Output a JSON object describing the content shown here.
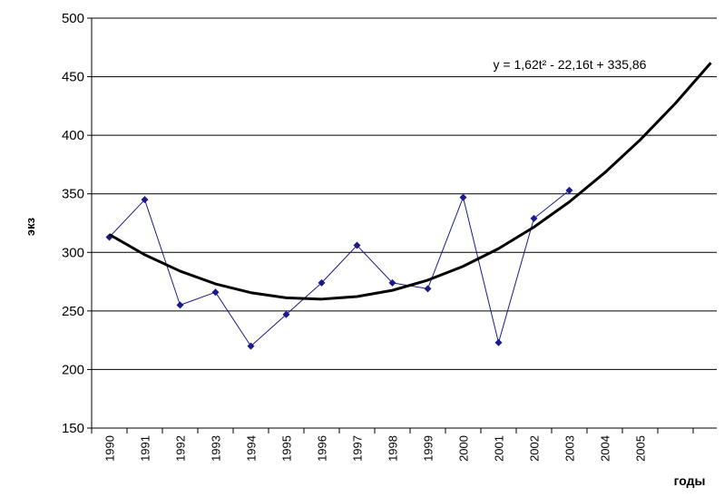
{
  "chart_data": {
    "type": "line",
    "annotation": "y = 1,62t² - 22,16t + 335,86",
    "xlabel": "годы",
    "ylabel": "экз",
    "categories": [
      "1990",
      "1991",
      "1992",
      "1993",
      "1994",
      "1995",
      "1996",
      "1997",
      "1998",
      "1999",
      "2000",
      "2001",
      "2002",
      "2003",
      "2004",
      "2005",
      null,
      null
    ],
    "series": [
      {
        "color": "#1a1a8c",
        "marker": "diamond",
        "width": 1,
        "values": [
          313,
          345,
          255,
          266,
          220,
          247,
          274,
          306,
          274,
          269,
          347,
          223,
          329,
          353,
          null,
          null,
          null,
          null
        ]
      },
      {
        "color": "#000000",
        "marker": "none",
        "width": 3,
        "values": [
          315.3,
          298.0,
          284.0,
          273.1,
          265.6,
          261.2,
          260.1,
          262.3,
          267.6,
          276.3,
          288.1,
          303.2,
          321.6,
          343.1,
          368.0,
          396.0,
          427.3,
          461.9
        ]
      }
    ],
    "ylim": [
      150,
      500
    ],
    "yticks": [
      150,
      200,
      250,
      300,
      350,
      400,
      450,
      500
    ],
    "grid": true
  }
}
